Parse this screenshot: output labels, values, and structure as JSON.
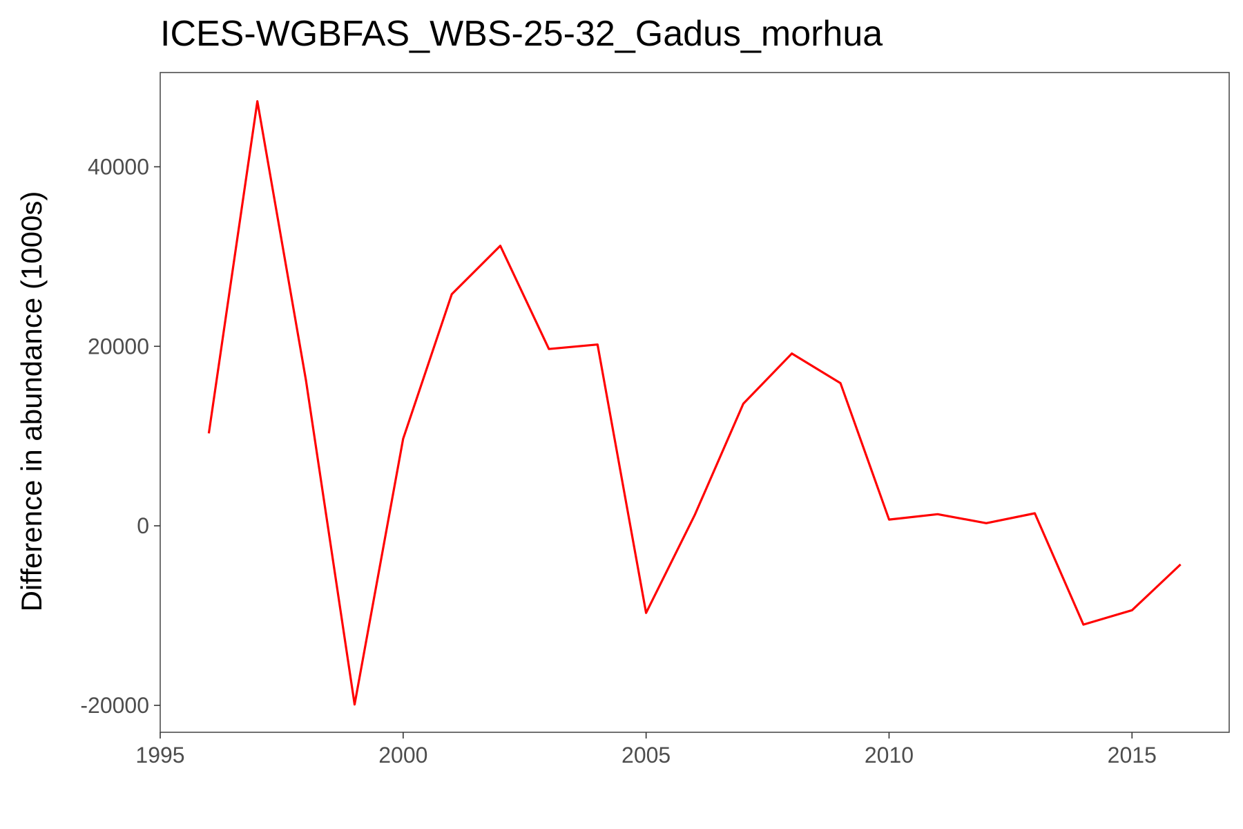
{
  "chart_data": {
    "type": "line",
    "title": "ICES-WGBFAS_WBS-25-32_Gadus_morhua",
    "xlabel": "",
    "ylabel": "Difference in abundance (1000s)",
    "xlim": [
      1995,
      2017
    ],
    "ylim": [
      -23000,
      50500
    ],
    "x_ticks": [
      1995,
      2000,
      2005,
      2010,
      2015
    ],
    "y_ticks": [
      -20000,
      0,
      20000,
      40000
    ],
    "x_tick_labels": [
      "1995",
      "2000",
      "2005",
      "2010",
      "2015"
    ],
    "y_tick_labels": [
      "-20000",
      "0",
      "20000",
      "40000"
    ],
    "grid": false,
    "series": [
      {
        "color": "#ff0000",
        "x": [
          1996,
          1997,
          1998,
          1999,
          2000,
          2001,
          2002,
          2003,
          2004,
          2005,
          2006,
          2007,
          2008,
          2009,
          2010,
          2011,
          2012,
          2013,
          2014,
          2015,
          2016
        ],
        "y": [
          10300,
          47300,
          16200,
          -19900,
          9700,
          25800,
          31200,
          19700,
          20200,
          -9700,
          1200,
          13600,
          19200,
          15900,
          700,
          1300,
          300,
          1400,
          -11000,
          -9400,
          -4300
        ]
      }
    ]
  }
}
